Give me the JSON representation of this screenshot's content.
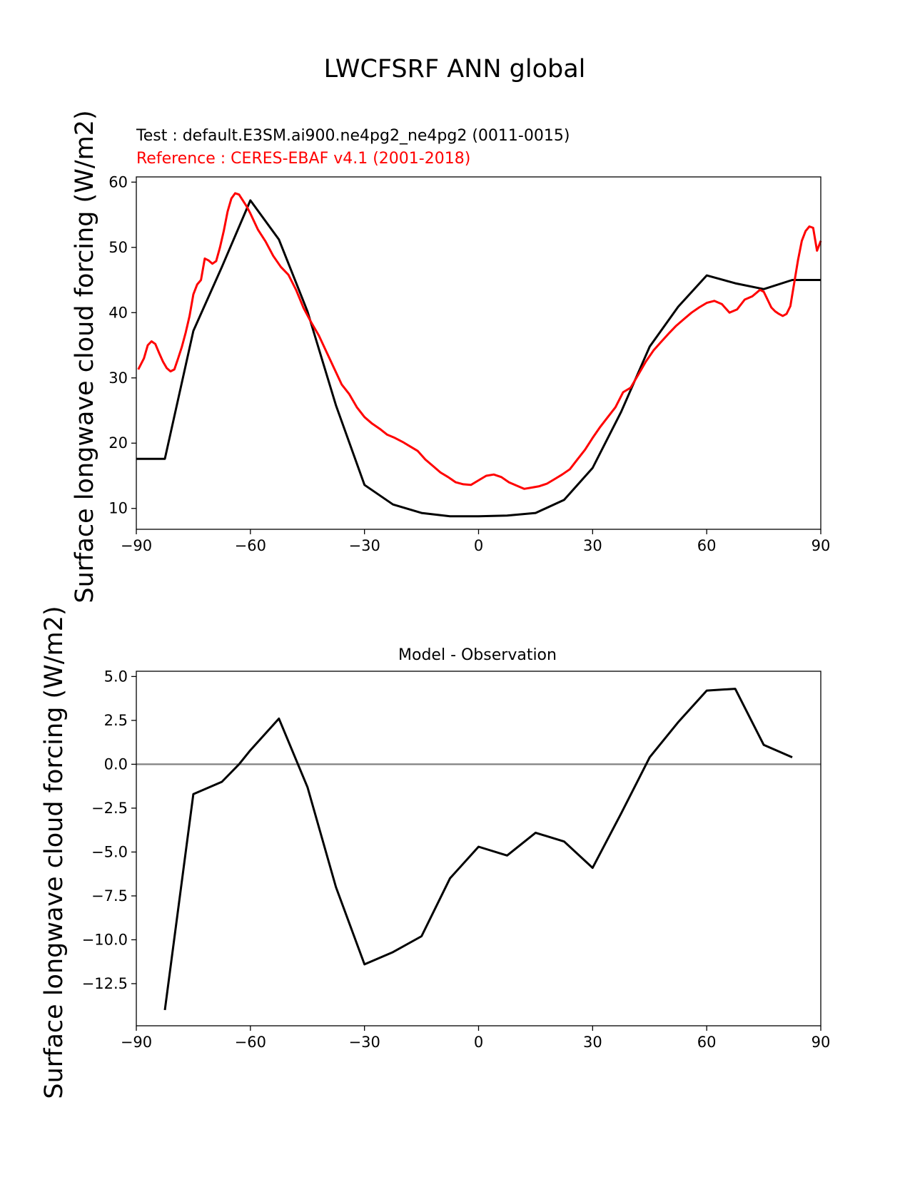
{
  "figure": {
    "title": "LWCFSRF ANN global"
  },
  "chart_data": [
    {
      "type": "line",
      "subtitle_test": "Test : default.E3SM.ai900.ne4pg2_ne4pg2 (0011-0015)",
      "subtitle_ref": "Reference : CERES-EBAF v4.1 (2001-2018)",
      "ylabel": "Surface longwave cloud forcing (W/m2)",
      "xlim": [
        -90,
        90
      ],
      "ylim": [
        6.8,
        60.8
      ],
      "xticks": [
        -90,
        -60,
        -30,
        0,
        30,
        60,
        90
      ],
      "xtick_labels": [
        "−90",
        "−60",
        "−30",
        "0",
        "30",
        "60",
        "90"
      ],
      "yticks": [
        10,
        20,
        30,
        40,
        50,
        60
      ],
      "ytick_labels": [
        "10",
        "20",
        "30",
        "40",
        "50",
        "60"
      ],
      "grid": false,
      "series": [
        {
          "color": "#000000",
          "x": [
            -90,
            -82.5,
            -75,
            -67.5,
            -60,
            -52.5,
            -45,
            -37.5,
            -30,
            -22.5,
            -15,
            -7.5,
            0,
            7.5,
            15,
            22.5,
            30,
            37.5,
            45,
            52.5,
            60,
            67.5,
            75,
            82.5,
            90
          ],
          "y": [
            17.6,
            17.6,
            37.2,
            47.0,
            57.2,
            51.2,
            40.2,
            25.8,
            13.6,
            10.6,
            9.3,
            8.8,
            8.8,
            8.9,
            9.3,
            11.3,
            16.2,
            24.8,
            34.8,
            40.9,
            45.7,
            44.5,
            43.6,
            45.0,
            45.0
          ]
        },
        {
          "color": "#ff0000",
          "x": [
            -89.5,
            -88,
            -87,
            -86,
            -85,
            -84,
            -83,
            -82,
            -81,
            -80,
            -79,
            -78,
            -77,
            -76,
            -75,
            -74,
            -73,
            -72,
            -71,
            -70,
            -69,
            -68,
            -67,
            -66,
            -65,
            -64,
            -63,
            -62,
            -61,
            -60,
            -58,
            -56,
            -54,
            -52,
            -50,
            -48,
            -46,
            -44,
            -42,
            -40,
            -38,
            -36,
            -34,
            -32,
            -30,
            -28,
            -26,
            -24,
            -22,
            -20,
            -18,
            -16,
            -14,
            -12,
            -10,
            -8,
            -6,
            -4,
            -2,
            0,
            2,
            4,
            6,
            8,
            10,
            12,
            14,
            16,
            18,
            20,
            22,
            24,
            26,
            28,
            30,
            32,
            34,
            36,
            38,
            40,
            42,
            44,
            46,
            48,
            50,
            52,
            54,
            56,
            58,
            60,
            62,
            64,
            66,
            68,
            70,
            72,
            74,
            75,
            76,
            77,
            78,
            79,
            80,
            81,
            82,
            83,
            84,
            85,
            86,
            87,
            88,
            89,
            90
          ],
          "y": [
            31.3,
            33.0,
            35.0,
            35.6,
            35.2,
            33.8,
            32.5,
            31.5,
            31.0,
            31.3,
            33.0,
            34.8,
            37.0,
            39.5,
            42.8,
            44.3,
            45.0,
            48.3,
            48.0,
            47.5,
            47.9,
            50.0,
            52.5,
            55.5,
            57.5,
            58.3,
            58.1,
            57.2,
            56.3,
            55.2,
            52.7,
            50.9,
            48.7,
            47.0,
            45.8,
            43.5,
            40.7,
            38.5,
            36.5,
            34.0,
            31.5,
            29.0,
            27.5,
            25.5,
            24.0,
            23.0,
            22.2,
            21.3,
            20.8,
            20.2,
            19.5,
            18.8,
            17.5,
            16.5,
            15.5,
            14.8,
            14.0,
            13.7,
            13.6,
            14.3,
            15.0,
            15.2,
            14.8,
            14.0,
            13.5,
            13.0,
            13.2,
            13.4,
            13.8,
            14.5,
            15.2,
            16.0,
            17.5,
            19.0,
            20.8,
            22.5,
            24.0,
            25.5,
            27.8,
            28.5,
            30.5,
            32.5,
            34.2,
            35.5,
            36.8,
            38.0,
            39.0,
            40.0,
            40.8,
            41.5,
            41.8,
            41.3,
            40.0,
            40.5,
            42.0,
            42.5,
            43.5,
            43.2,
            42.0,
            40.8,
            40.2,
            39.8,
            39.5,
            39.8,
            41.0,
            44.5,
            48.0,
            51.0,
            52.5,
            53.2,
            53.0,
            49.5,
            51.0
          ]
        }
      ]
    },
    {
      "type": "line",
      "title": "Model - Observation",
      "ylabel": "Surface longwave cloud forcing (W/m2)",
      "xlim": [
        -90,
        90
      ],
      "ylim": [
        -14.9,
        5.3
      ],
      "xticks": [
        -90,
        -60,
        -30,
        0,
        30,
        60,
        90
      ],
      "xtick_labels": [
        "−90",
        "−60",
        "−30",
        "0",
        "30",
        "60",
        "90"
      ],
      "yticks": [
        5,
        2.5,
        0,
        -2.5,
        -5,
        -7.5,
        -10,
        -12.5
      ],
      "ytick_labels": [
        "5.0",
        "2.5",
        "0.0",
        "−2.5",
        "−5.0",
        "−7.5",
        "−10.0",
        "−12.5"
      ],
      "zero_line_color": "#808080",
      "grid": false,
      "series": [
        {
          "color": "#000000",
          "x": [
            -82.5,
            -75,
            -67.5,
            -63,
            -60,
            -52.5,
            -45,
            -37.5,
            -30,
            -22.5,
            -15,
            -7.5,
            0,
            7.5,
            15,
            22.5,
            30,
            37.5,
            45,
            52.5,
            60,
            67.5,
            75,
            82.5
          ],
          "y": [
            -14.0,
            -1.7,
            -1.0,
            0.0,
            0.8,
            2.6,
            -1.3,
            -7.0,
            -11.4,
            -10.7,
            -9.8,
            -6.5,
            -4.7,
            -5.2,
            -3.9,
            -4.4,
            -5.9,
            -2.8,
            0.4,
            2.4,
            4.2,
            4.3,
            1.1,
            0.4
          ]
        }
      ]
    }
  ]
}
